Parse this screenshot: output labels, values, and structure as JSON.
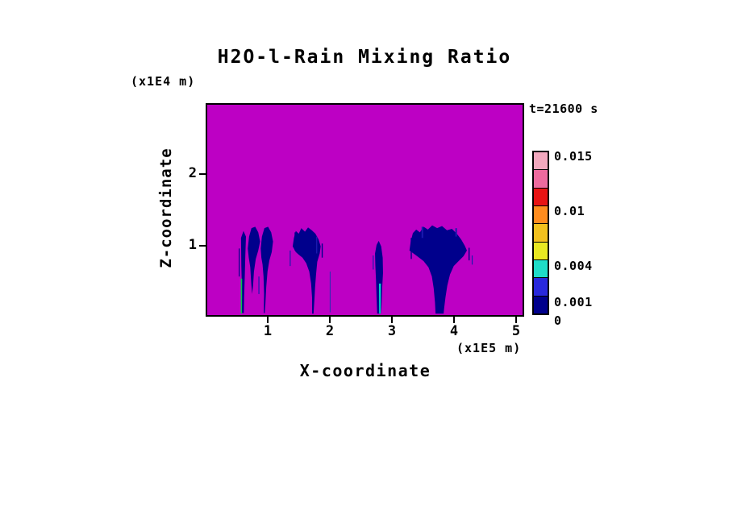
{
  "chart_data": {
    "type": "heatmap",
    "title": "H2O-l-Rain Mixing Ratio",
    "time_label": "t=21600 s",
    "xlabel": "X-coordinate",
    "x_units": "(x1E5 m)",
    "ylabel": "Z-coordinate",
    "y_units": "(x1E4 m)",
    "x_ticks": [
      1,
      2,
      3,
      4,
      5
    ],
    "y_ticks": [
      1,
      2
    ],
    "x_range": [
      0,
      5.13
    ],
    "y_range": [
      0,
      3.0
    ],
    "levels": [
      0,
      0.001,
      0.004,
      0.01,
      0.015
    ],
    "field_background_color": "#BD00C4",
    "colorbar": {
      "segment_colors_top_to_bottom": [
        "#F2A8BE",
        "#EE6A9E",
        "#E81414",
        "#FF8C1E",
        "#F2C11E",
        "#E8E822",
        "#1EDCC8",
        "#2828DC",
        "#00008C"
      ],
      "labels": [
        {
          "text": "0.015",
          "frac_from_top": 0.0
        },
        {
          "text": "0.01",
          "frac_from_top": 0.3333
        },
        {
          "text": "0.004",
          "frac_from_top": 0.6667
        },
        {
          "text": "0.001",
          "frac_from_top": 0.8889
        },
        {
          "text": "0",
          "frac_from_top": 1.0
        }
      ]
    },
    "rain_plumes": [
      {
        "name": "plume-1-streak",
        "color": "#00008C",
        "points": [
          [
            0.55,
            1.1
          ],
          [
            0.59,
            1.2
          ],
          [
            0.63,
            1.12
          ],
          [
            0.62,
            0.85
          ],
          [
            0.61,
            0.55
          ],
          [
            0.6,
            0.25
          ],
          [
            0.595,
            0.03
          ],
          [
            0.565,
            0.03
          ],
          [
            0.565,
            0.35
          ],
          [
            0.555,
            0.7
          ]
        ]
      },
      {
        "name": "plume-1-blob",
        "color": "#00008C",
        "points": [
          [
            0.66,
            0.95
          ],
          [
            0.68,
            1.12
          ],
          [
            0.72,
            1.24
          ],
          [
            0.78,
            1.26
          ],
          [
            0.83,
            1.18
          ],
          [
            0.86,
            1.05
          ],
          [
            0.83,
            0.92
          ],
          [
            0.79,
            0.8
          ],
          [
            0.76,
            0.62
          ],
          [
            0.745,
            0.42
          ],
          [
            0.73,
            0.3
          ],
          [
            0.715,
            0.45
          ],
          [
            0.7,
            0.68
          ],
          [
            0.675,
            0.82
          ]
        ]
      },
      {
        "name": "plume-2",
        "color": "#00008C",
        "points": [
          [
            0.87,
            0.95
          ],
          [
            0.89,
            1.12
          ],
          [
            0.93,
            1.24
          ],
          [
            0.99,
            1.26
          ],
          [
            1.04,
            1.18
          ],
          [
            1.07,
            1.05
          ],
          [
            1.05,
            0.9
          ],
          [
            1.01,
            0.78
          ],
          [
            0.98,
            0.62
          ],
          [
            0.96,
            0.4
          ],
          [
            0.945,
            0.15
          ],
          [
            0.935,
            0.03
          ],
          [
            0.92,
            0.03
          ],
          [
            0.925,
            0.3
          ],
          [
            0.915,
            0.55
          ],
          [
            0.9,
            0.72
          ],
          [
            0.88,
            0.82
          ]
        ]
      },
      {
        "name": "plume-3",
        "color": "#00008C",
        "points": [
          [
            1.39,
            0.98
          ],
          [
            1.41,
            1.1
          ],
          [
            1.44,
            1.2
          ],
          [
            1.49,
            1.16
          ],
          [
            1.53,
            1.24
          ],
          [
            1.59,
            1.19
          ],
          [
            1.64,
            1.25
          ],
          [
            1.7,
            1.21
          ],
          [
            1.76,
            1.16
          ],
          [
            1.81,
            1.08
          ],
          [
            1.845,
            0.98
          ],
          [
            1.83,
            0.88
          ],
          [
            1.79,
            0.76
          ],
          [
            1.77,
            0.58
          ],
          [
            1.755,
            0.4
          ],
          [
            1.745,
            0.25
          ],
          [
            1.735,
            0.1
          ],
          [
            1.73,
            0.02
          ],
          [
            1.705,
            0.02
          ],
          [
            1.705,
            0.25
          ],
          [
            1.69,
            0.45
          ],
          [
            1.66,
            0.62
          ],
          [
            1.61,
            0.74
          ],
          [
            1.55,
            0.82
          ],
          [
            1.49,
            0.86
          ],
          [
            1.44,
            0.9
          ]
        ]
      },
      {
        "name": "plume-4",
        "color": "#00008C",
        "points": [
          [
            2.73,
            0.88
          ],
          [
            2.755,
            1.0
          ],
          [
            2.79,
            1.06
          ],
          [
            2.83,
            0.98
          ],
          [
            2.855,
            0.82
          ],
          [
            2.86,
            0.6
          ],
          [
            2.845,
            0.38
          ],
          [
            2.835,
            0.15
          ],
          [
            2.825,
            0.02
          ],
          [
            2.765,
            0.02
          ],
          [
            2.755,
            0.25
          ],
          [
            2.745,
            0.5
          ],
          [
            2.735,
            0.7
          ]
        ]
      },
      {
        "name": "plume-5",
        "color": "#00008C",
        "points": [
          [
            3.29,
            0.92
          ],
          [
            3.31,
            1.05
          ],
          [
            3.345,
            1.17
          ],
          [
            3.4,
            1.22
          ],
          [
            3.46,
            1.18
          ],
          [
            3.52,
            1.26
          ],
          [
            3.59,
            1.22
          ],
          [
            3.66,
            1.28
          ],
          [
            3.74,
            1.24
          ],
          [
            3.82,
            1.27
          ],
          [
            3.9,
            1.21
          ],
          [
            3.98,
            1.23
          ],
          [
            4.06,
            1.16
          ],
          [
            4.13,
            1.08
          ],
          [
            4.19,
            0.99
          ],
          [
            4.225,
            0.92
          ],
          [
            4.17,
            0.84
          ],
          [
            4.09,
            0.77
          ],
          [
            4.01,
            0.7
          ],
          [
            3.95,
            0.58
          ],
          [
            3.905,
            0.42
          ],
          [
            3.875,
            0.25
          ],
          [
            3.855,
            0.1
          ],
          [
            3.845,
            0.02
          ],
          [
            3.715,
            0.02
          ],
          [
            3.705,
            0.18
          ],
          [
            3.685,
            0.38
          ],
          [
            3.655,
            0.55
          ],
          [
            3.6,
            0.68
          ],
          [
            3.52,
            0.77
          ],
          [
            3.43,
            0.83
          ],
          [
            3.355,
            0.88
          ]
        ]
      },
      {
        "name": "green-sliver",
        "color": "#00C84B",
        "points": [
          [
            0.545,
            0.52
          ],
          [
            0.568,
            0.52
          ],
          [
            0.565,
            0.02
          ],
          [
            0.545,
            0.02
          ]
        ]
      },
      {
        "name": "cyan-sliver",
        "color": "#00DCC8",
        "points": [
          [
            2.795,
            0.45
          ],
          [
            2.825,
            0.45
          ],
          [
            2.82,
            0.02
          ],
          [
            2.798,
            0.02
          ]
        ]
      }
    ],
    "rain_streaks": [
      {
        "x": 0.52,
        "z1": 0.55,
        "z2": 0.95,
        "w": 1.2,
        "color": "#00008C"
      },
      {
        "x": 0.84,
        "z1": 0.3,
        "z2": 0.55,
        "w": 1.2,
        "color": "#1A1AAE"
      },
      {
        "x": 1.35,
        "z1": 0.7,
        "z2": 0.92,
        "w": 1.2,
        "color": "#1A1AAE"
      },
      {
        "x": 1.43,
        "z1": 0.92,
        "z2": 1.18,
        "w": 1.4,
        "color": "#00008C"
      },
      {
        "x": 1.78,
        "z1": 0.88,
        "z2": 1.12,
        "w": 1.4,
        "color": "#1A1AAE"
      },
      {
        "x": 1.87,
        "z1": 0.82,
        "z2": 1.02,
        "w": 1.4,
        "color": "#00008C"
      },
      {
        "x": 2.0,
        "z1": 0.04,
        "z2": 0.62,
        "w": 1.2,
        "color": "#3A28B4"
      },
      {
        "x": 2.7,
        "z1": 0.65,
        "z2": 0.85,
        "w": 1.2,
        "color": "#1A1AAE"
      },
      {
        "x": 3.32,
        "z1": 0.8,
        "z2": 1.1,
        "w": 1.4,
        "color": "#00008C"
      },
      {
        "x": 3.5,
        "z1": 1.1,
        "z2": 1.26,
        "w": 2.0,
        "color": "#1A1AAE"
      },
      {
        "x": 4.05,
        "z1": 1.12,
        "z2": 1.24,
        "w": 2.0,
        "color": "#1A1AAE"
      },
      {
        "x": 4.26,
        "z1": 0.78,
        "z2": 0.96,
        "w": 1.4,
        "color": "#00008C"
      },
      {
        "x": 4.31,
        "z1": 0.72,
        "z2": 0.85,
        "w": 1.2,
        "color": "#1A1AAE"
      }
    ]
  }
}
